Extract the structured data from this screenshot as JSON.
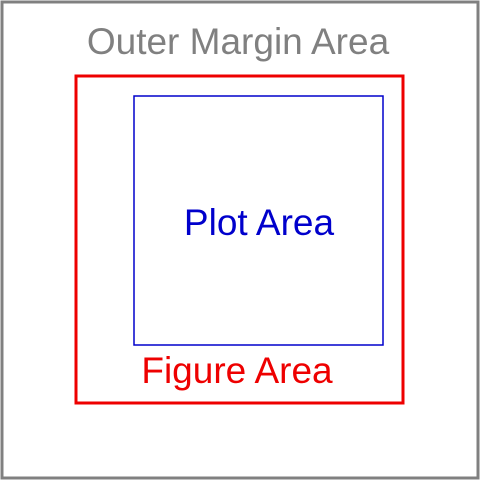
{
  "diagram": {
    "outer": {
      "label": "Outer Margin Area",
      "color": "#808080"
    },
    "figure": {
      "label": "Figure Area",
      "color": "#ee0000"
    },
    "plot": {
      "label": "Plot Area",
      "color": "#0000cc"
    }
  }
}
